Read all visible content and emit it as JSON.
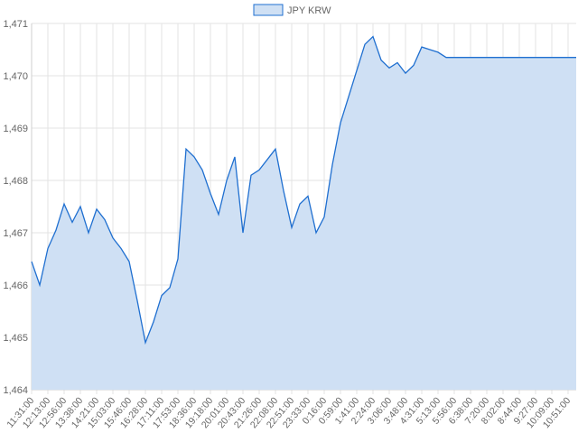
{
  "chart_data": {
    "type": "area",
    "legend": {
      "label": "JPY KRW",
      "position": "top"
    },
    "series": [
      {
        "name": "JPY KRW",
        "stroke": "#1f6fd0",
        "fill": "#cfe0f4",
        "points": [
          [
            "11:31:00",
            1466.45
          ],
          [
            "11:52:00",
            1466.0
          ],
          [
            "12:13:00",
            1466.7
          ],
          [
            "12:35:00",
            1467.05
          ],
          [
            "12:56:00",
            1467.55
          ],
          [
            "13:17:00",
            1467.2
          ],
          [
            "13:38:00",
            1467.5
          ],
          [
            "14:00:00",
            1467.0
          ],
          [
            "14:21:00",
            1467.45
          ],
          [
            "14:42:00",
            1467.25
          ],
          [
            "15:03:00",
            1466.9
          ],
          [
            "15:25:00",
            1466.7
          ],
          [
            "15:46:00",
            1466.45
          ],
          [
            "16:07:00",
            1465.7
          ],
          [
            "16:28:00",
            1464.9
          ],
          [
            "16:49:00",
            1465.3
          ],
          [
            "17:11:00",
            1465.8
          ],
          [
            "17:32:00",
            1465.95
          ],
          [
            "17:53:00",
            1466.5
          ],
          [
            "18:14:00",
            1468.6
          ],
          [
            "18:36:00",
            1468.45
          ],
          [
            "18:57:00",
            1468.2
          ],
          [
            "19:18:00",
            1467.75
          ],
          [
            "19:39:00",
            1467.35
          ],
          [
            "20:01:00",
            1468.0
          ],
          [
            "20:22:00",
            1468.45
          ],
          [
            "20:43:00",
            1467.0
          ],
          [
            "21:04:00",
            1468.1
          ],
          [
            "21:26:00",
            1468.2
          ],
          [
            "21:47:00",
            1468.4
          ],
          [
            "22:08:00",
            1468.6
          ],
          [
            "22:29:00",
            1467.8
          ],
          [
            "22:51:00",
            1467.1
          ],
          [
            "23:12:00",
            1467.55
          ],
          [
            "23:33:00",
            1467.7
          ],
          [
            "23:54:00",
            1467.0
          ],
          [
            "0:16:00",
            1467.3
          ],
          [
            "0:37:00",
            1468.3
          ],
          [
            "0:59:00",
            1469.1
          ],
          [
            "1:20:00",
            1469.6
          ],
          [
            "1:41:00",
            1470.1
          ],
          [
            "2:03:00",
            1470.6
          ],
          [
            "2:24:00",
            1470.75
          ],
          [
            "2:45:00",
            1470.3
          ],
          [
            "3:06:00",
            1470.15
          ],
          [
            "3:27:00",
            1470.25
          ],
          [
            "3:48:00",
            1470.05
          ],
          [
            "4:10:00",
            1470.2
          ],
          [
            "4:31:00",
            1470.55
          ],
          [
            "4:52:00",
            1470.5
          ],
          [
            "5:13:00",
            1470.45
          ],
          [
            "5:35:00",
            1470.35
          ],
          [
            "5:56:00",
            1470.35
          ],
          [
            "6:38:00",
            1470.35
          ],
          [
            "7:20:00",
            1470.35
          ],
          [
            "8:02:00",
            1470.35
          ],
          [
            "8:44:00",
            1470.35
          ],
          [
            "9:27:00",
            1470.35
          ],
          [
            "10:09:00",
            1470.35
          ],
          [
            "10:51:00",
            1470.35
          ],
          [
            "11:31:00",
            1470.35
          ]
        ]
      }
    ],
    "x_tick_labels": [
      "11:31:00",
      "12:13:00",
      "12:56:00",
      "13:38:00",
      "14:21:00",
      "15:03:00",
      "15:46:00",
      "16:28:00",
      "17:11:00",
      "17:53:00",
      "18:36:00",
      "19:18:00",
      "20:01:00",
      "20:43:00",
      "21:26:00",
      "22:08:00",
      "22:51:00",
      "23:33:00",
      "0:16:00",
      "0:59:00",
      "1:41:00",
      "2:24:00",
      "3:06:00",
      "3:48:00",
      "4:31:00",
      "5:13:00",
      "5:56:00",
      "6:38:00",
      "7:20:00",
      "8:02:00",
      "8:44:00",
      "9:27:00",
      "10:09:00",
      "10:51:00"
    ],
    "y_tick_labels": [
      "1,464",
      "1,465",
      "1,466",
      "1,467",
      "1,468",
      "1,469",
      "1,470",
      "1,471"
    ],
    "ylim": [
      1464,
      1471
    ],
    "grid": true
  }
}
